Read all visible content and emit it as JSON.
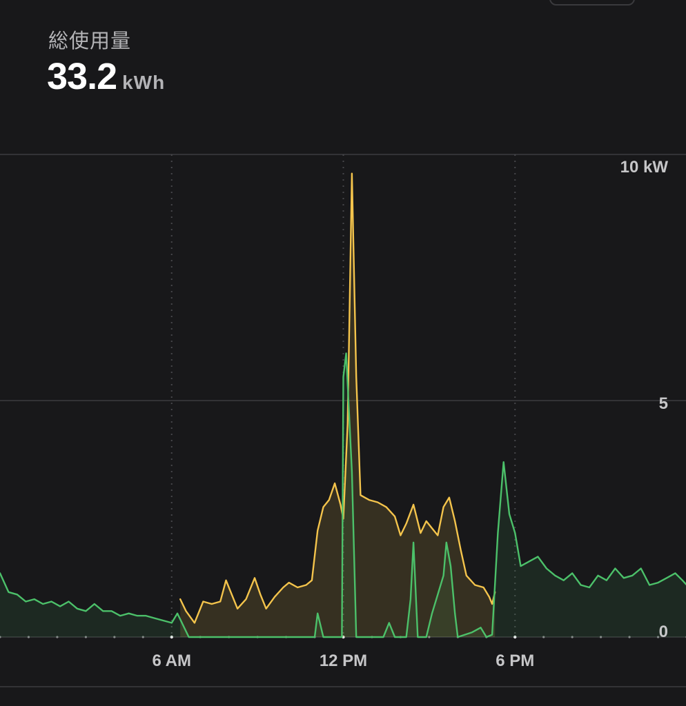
{
  "summary": {
    "label": "総使用量",
    "value": "33.2",
    "unit": "kWh"
  },
  "colors": {
    "background": "#18181a",
    "consumption": "#f4c44c",
    "solar": "#4cc16a",
    "grid": "#3c3c3f"
  },
  "chart_data": {
    "type": "line",
    "ylim": [
      0,
      10
    ],
    "xlim": [
      0,
      24
    ],
    "x_unit": "hour",
    "y_ticks": [
      {
        "value": 0,
        "label": "0"
      },
      {
        "value": 5,
        "label": "5"
      },
      {
        "value": 10,
        "label": "10 kW"
      }
    ],
    "x_ticks": [
      {
        "value": 6,
        "label": "6 AM"
      },
      {
        "value": 12,
        "label": "12 PM"
      },
      {
        "value": 18,
        "label": "6 PM"
      }
    ],
    "series": [
      {
        "color": "#f4c44c",
        "fill": "rgba(244,196,76,0.14)",
        "points": [
          [
            6.3,
            0.8
          ],
          [
            6.5,
            0.55
          ],
          [
            6.8,
            0.3
          ],
          [
            7.1,
            0.75
          ],
          [
            7.4,
            0.7
          ],
          [
            7.7,
            0.75
          ],
          [
            7.9,
            1.2
          ],
          [
            8.1,
            0.9
          ],
          [
            8.3,
            0.6
          ],
          [
            8.6,
            0.8
          ],
          [
            8.9,
            1.25
          ],
          [
            9.1,
            0.9
          ],
          [
            9.3,
            0.6
          ],
          [
            9.6,
            0.85
          ],
          [
            9.9,
            1.05
          ],
          [
            10.1,
            1.15
          ],
          [
            10.4,
            1.05
          ],
          [
            10.7,
            1.1
          ],
          [
            10.9,
            1.2
          ],
          [
            11.1,
            2.25
          ],
          [
            11.3,
            2.75
          ],
          [
            11.5,
            2.9
          ],
          [
            11.7,
            3.25
          ],
          [
            11.9,
            2.8
          ],
          [
            12.0,
            2.5
          ],
          [
            12.15,
            4.5
          ],
          [
            12.3,
            9.8
          ],
          [
            12.45,
            5.5
          ],
          [
            12.6,
            3.0
          ],
          [
            12.9,
            2.9
          ],
          [
            13.2,
            2.85
          ],
          [
            13.5,
            2.75
          ],
          [
            13.8,
            2.55
          ],
          [
            14.0,
            2.15
          ],
          [
            14.2,
            2.4
          ],
          [
            14.45,
            2.8
          ],
          [
            14.7,
            2.2
          ],
          [
            14.9,
            2.45
          ],
          [
            15.1,
            2.3
          ],
          [
            15.3,
            2.15
          ],
          [
            15.5,
            2.75
          ],
          [
            15.7,
            2.95
          ],
          [
            15.9,
            2.45
          ],
          [
            16.1,
            1.85
          ],
          [
            16.3,
            1.3
          ],
          [
            16.6,
            1.1
          ],
          [
            16.9,
            1.05
          ],
          [
            17.1,
            0.85
          ],
          [
            17.2,
            0.7
          ],
          [
            17.3,
            0.95
          ]
        ]
      },
      {
        "color": "#4cc16a",
        "fill": "rgba(76,193,106,0.10)",
        "points": [
          [
            0.0,
            1.35
          ],
          [
            0.3,
            0.95
          ],
          [
            0.6,
            0.9
          ],
          [
            0.9,
            0.75
          ],
          [
            1.2,
            0.8
          ],
          [
            1.5,
            0.7
          ],
          [
            1.8,
            0.75
          ],
          [
            2.1,
            0.65
          ],
          [
            2.4,
            0.75
          ],
          [
            2.7,
            0.6
          ],
          [
            3.0,
            0.55
          ],
          [
            3.3,
            0.7
          ],
          [
            3.6,
            0.55
          ],
          [
            3.9,
            0.55
          ],
          [
            4.2,
            0.45
          ],
          [
            4.5,
            0.5
          ],
          [
            4.8,
            0.45
          ],
          [
            5.1,
            0.45
          ],
          [
            5.4,
            0.4
          ],
          [
            5.7,
            0.35
          ],
          [
            6.0,
            0.3
          ],
          [
            6.2,
            0.5
          ],
          [
            6.4,
            0.25
          ],
          [
            6.6,
            0.0
          ],
          [
            11.0,
            0.0
          ],
          [
            11.1,
            0.5
          ],
          [
            11.3,
            0.0
          ],
          [
            11.75,
            0.0
          ],
          [
            11.95,
            0.0
          ],
          [
            12.0,
            5.5
          ],
          [
            12.1,
            6.0
          ],
          [
            12.3,
            3.5
          ],
          [
            12.45,
            0.0
          ],
          [
            13.4,
            0.0
          ],
          [
            13.6,
            0.3
          ],
          [
            13.8,
            0.0
          ],
          [
            14.2,
            0.0
          ],
          [
            14.35,
            0.8
          ],
          [
            14.45,
            2.0
          ],
          [
            14.6,
            0.0
          ],
          [
            14.9,
            0.0
          ],
          [
            15.1,
            0.5
          ],
          [
            15.3,
            0.9
          ],
          [
            15.5,
            1.3
          ],
          [
            15.6,
            2.0
          ],
          [
            15.75,
            1.5
          ],
          [
            15.9,
            0.5
          ],
          [
            16.0,
            0.0
          ],
          [
            16.5,
            0.1
          ],
          [
            16.8,
            0.2
          ],
          [
            17.0,
            0.0
          ],
          [
            17.2,
            0.05
          ],
          [
            17.4,
            2.2
          ],
          [
            17.6,
            3.7
          ],
          [
            17.8,
            2.6
          ],
          [
            18.0,
            2.2
          ],
          [
            18.2,
            1.5
          ],
          [
            18.5,
            1.6
          ],
          [
            18.8,
            1.7
          ],
          [
            19.1,
            1.45
          ],
          [
            19.4,
            1.3
          ],
          [
            19.7,
            1.2
          ],
          [
            20.0,
            1.35
          ],
          [
            20.3,
            1.1
          ],
          [
            20.6,
            1.05
          ],
          [
            20.9,
            1.3
          ],
          [
            21.2,
            1.2
          ],
          [
            21.5,
            1.45
          ],
          [
            21.8,
            1.25
          ],
          [
            22.1,
            1.3
          ],
          [
            22.4,
            1.45
          ],
          [
            22.7,
            1.1
          ],
          [
            23.0,
            1.15
          ],
          [
            23.3,
            1.25
          ],
          [
            23.6,
            1.35
          ],
          [
            23.85,
            1.2
          ],
          [
            24.0,
            1.1
          ]
        ]
      }
    ]
  }
}
